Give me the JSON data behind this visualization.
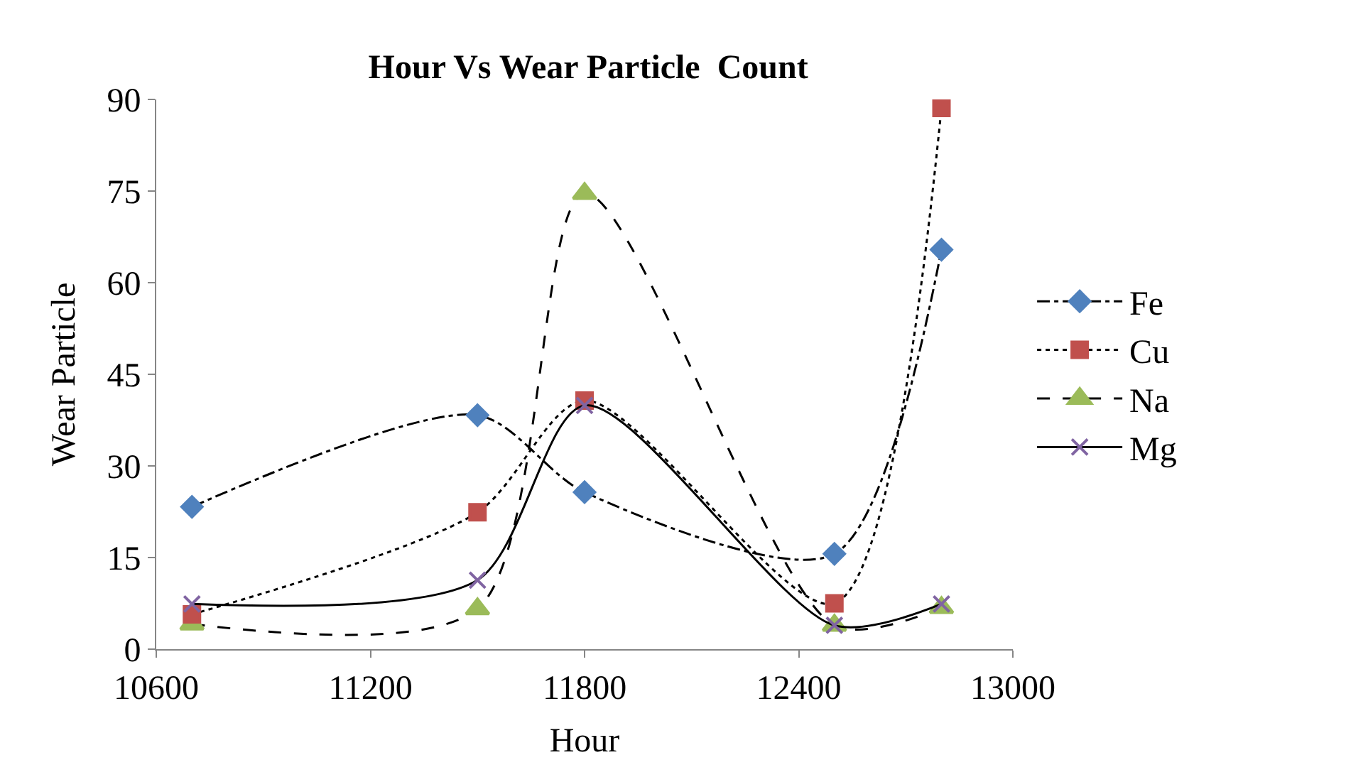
{
  "chart_data": {
    "type": "line",
    "title": "Hour Vs Wear Particle  Count",
    "xlabel": "Hour",
    "ylabel": "Wear Particle",
    "x": [
      10700,
      11500,
      11800,
      12500,
      12800
    ],
    "series": [
      {
        "name": "Fe",
        "color": "#4f81bd",
        "marker": "diamond",
        "line_style": "dashdot",
        "values": [
          23.3,
          38.3,
          25.7,
          15.6,
          65.4
        ]
      },
      {
        "name": "Cu",
        "color": "#c0504d",
        "marker": "square",
        "line_style": "dotted",
        "values": [
          5.7,
          22.4,
          40.7,
          7.5,
          88.6
        ]
      },
      {
        "name": "Na",
        "color": "#9bbb59",
        "marker": "triangle",
        "line_style": "dashed",
        "values": [
          4.1,
          6.6,
          74.6,
          3.9,
          6.8
        ]
      },
      {
        "name": "Mg",
        "color": "#8064a2",
        "marker": "cross",
        "line_style": "solid",
        "values": [
          7.4,
          11.3,
          39.9,
          3.9,
          7.4
        ]
      }
    ],
    "xlim": [
      10600,
      13000
    ],
    "xticks": [
      10600,
      11200,
      11800,
      12400,
      13000
    ],
    "ylim": [
      0,
      90
    ],
    "yticks": [
      0,
      15,
      30,
      45,
      60,
      75,
      90
    ],
    "legend": "right"
  }
}
